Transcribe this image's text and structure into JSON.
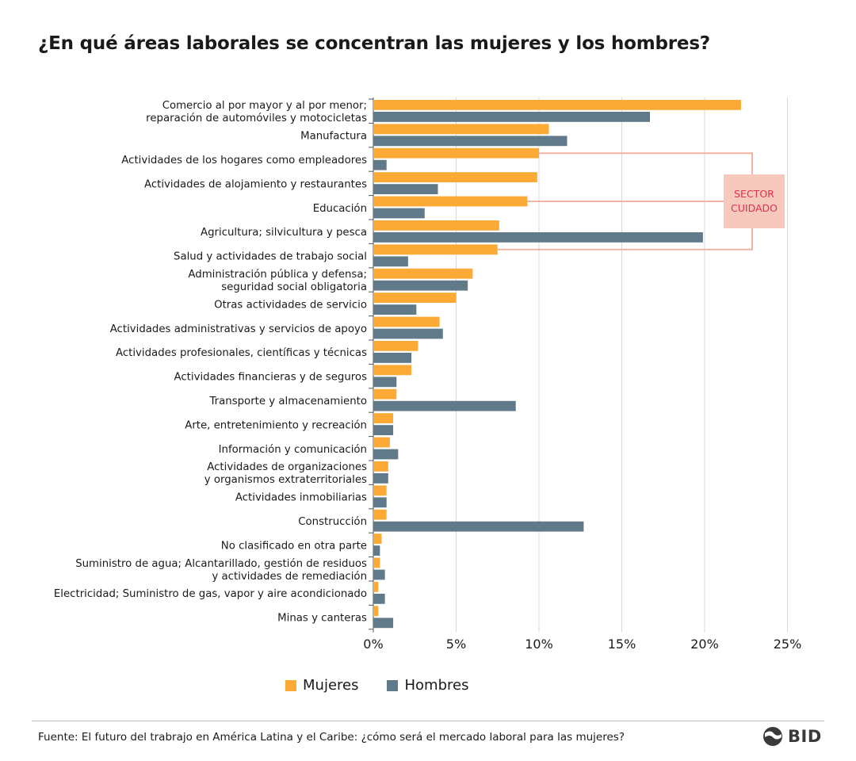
{
  "title": "¿En qué áreas laborales se concentran las mujeres y los hombres?",
  "colors": {
    "mujeres": "#FBAA36",
    "hombres": "#617A8A",
    "sector_fill": "#F7C8BC",
    "sector_line": "#F2B3A5",
    "sector_text": "#E0304A",
    "grid": "#d9d9d9"
  },
  "chart_data": {
    "type": "bar",
    "orientation": "horizontal",
    "categories": [
      [
        "Comercio al por mayor y al por menor;",
        "reparación de automóviles y motocicletas"
      ],
      [
        "Manufactura"
      ],
      [
        "Actividades de los hogares como empleadores"
      ],
      [
        "Actividades de alojamiento y restaurantes"
      ],
      [
        "Educación"
      ],
      [
        "Agricultura; silvicultura y pesca"
      ],
      [
        "Salud y actividades de trabajo social"
      ],
      [
        "Administración pública y defensa;",
        "seguridad social obligatoria"
      ],
      [
        "Otras actividades de servicio"
      ],
      [
        "Actividades administrativas y servicios de apoyo"
      ],
      [
        "Actividades profesionales, científicas y técnicas"
      ],
      [
        "Actividades financieras y de seguros"
      ],
      [
        "Transporte y almacenamiento"
      ],
      [
        "Arte, entretenimiento y recreación"
      ],
      [
        "Información y comunicación"
      ],
      [
        "Actividades de organizaciones",
        "y organismos extraterritoriales"
      ],
      [
        "Actividades inmobiliarias"
      ],
      [
        "Construcción"
      ],
      [
        "No clasificado en otra parte"
      ],
      [
        "Suministro de agua; Alcantarillado, gestión de residuos",
        "y actividades de remediación"
      ],
      [
        "Electricidad; Suministro de gas, vapor y aire acondicionado"
      ],
      [
        "Minas y canteras"
      ]
    ],
    "series": [
      {
        "name": "Mujeres",
        "values": [
          22.2,
          10.6,
          10.0,
          9.9,
          9.3,
          7.6,
          7.5,
          6.0,
          5.0,
          4.0,
          2.7,
          2.3,
          1.4,
          1.2,
          1.0,
          0.9,
          0.8,
          0.8,
          0.5,
          0.4,
          0.3,
          0.3
        ]
      },
      {
        "name": "Hombres",
        "values": [
          16.7,
          11.7,
          0.8,
          3.9,
          3.1,
          19.9,
          2.1,
          5.7,
          2.6,
          4.2,
          2.3,
          1.4,
          8.6,
          1.2,
          1.5,
          0.9,
          0.8,
          12.7,
          0.4,
          0.7,
          0.7,
          1.2
        ]
      }
    ],
    "xlim": [
      0,
      25
    ],
    "x_ticks": [
      "0%",
      "5%",
      "10%",
      "15%",
      "20%",
      "25%"
    ],
    "grid": true,
    "legend_position": "bottom",
    "annotation": {
      "lines": [
        "SECTOR",
        "CUIDADO"
      ],
      "categories": [
        "Actividades de los hogares como empleadores",
        "Educación",
        "Salud y actividades de trabajo social"
      ]
    }
  },
  "legend": {
    "mujeres": "Mujeres",
    "hombres": "Hombres"
  },
  "source": "Fuente: El futuro del trabrajo en América Latina y el Caribe: ¿cómo será el mercado laboral para las mujeres?",
  "logo": {
    "text": "BID"
  }
}
